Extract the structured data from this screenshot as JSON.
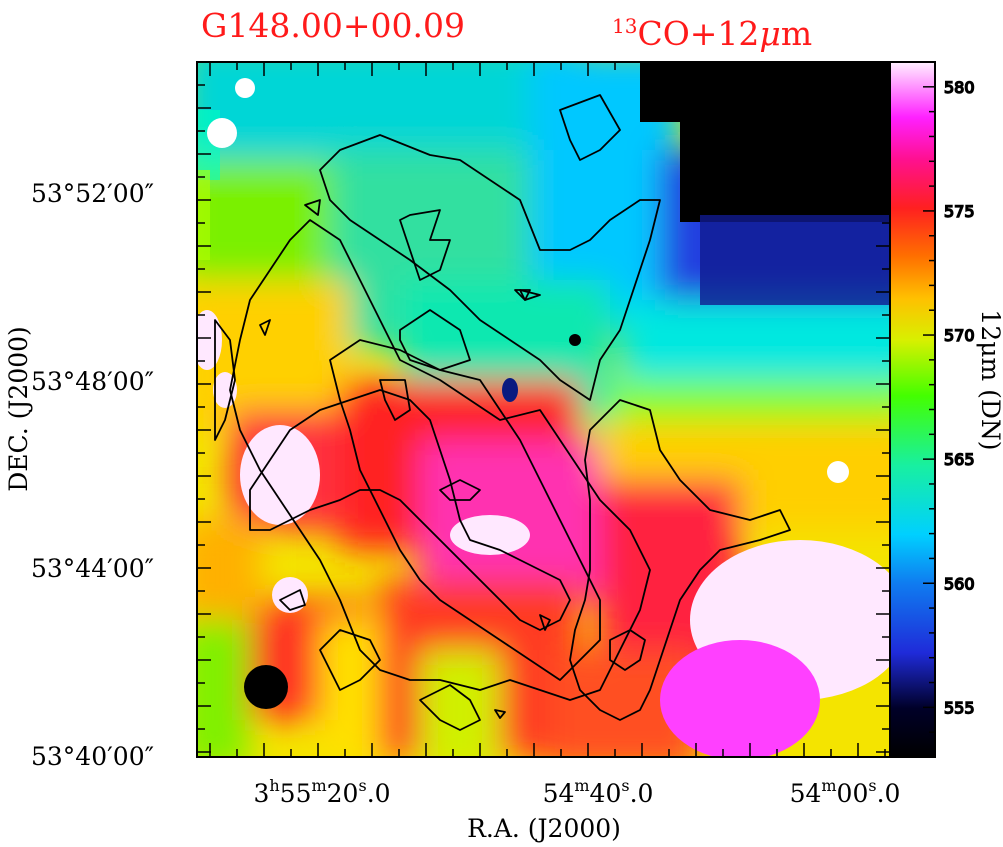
{
  "title": {
    "source": "G148.00+00.09",
    "tracer_sup": "13",
    "tracer": "CO+12",
    "mu": "μ",
    "unit": "m",
    "color": "#ff1a1a"
  },
  "chart_data": {
    "type": "heatmap",
    "xlabel": "R.A.  (J2000)",
    "ylabel": "DEC.  (J2000)",
    "colorbar_label": "12μm  (DN)",
    "colorbar_range": [
      553,
      581
    ],
    "colorbar_ticks": [
      555,
      560,
      565,
      570,
      575,
      580
    ],
    "colormap": "rainbow (black-blue-cyan-green-yellow-red-magenta-white)",
    "x_ticks": [
      {
        "h": "3",
        "hu": "h",
        "m": "55",
        "mu": "m",
        "s": "20",
        "su": "s",
        "f": ".0"
      },
      {
        "h": "",
        "hu": "",
        "m": "54",
        "mu": "m",
        "s": "40",
        "su": "s",
        "f": ".0"
      },
      {
        "h": "",
        "hu": "",
        "m": "54",
        "mu": "m",
        "s": "00",
        "su": "s",
        "f": ".0"
      }
    ],
    "y_ticks": [
      "53°52′00″",
      "53°48′00″",
      "53°44′00″",
      "53°40′00″"
    ],
    "beam": "filled circle, lower left",
    "overlay": "13CO integrated intensity contours (black)"
  }
}
